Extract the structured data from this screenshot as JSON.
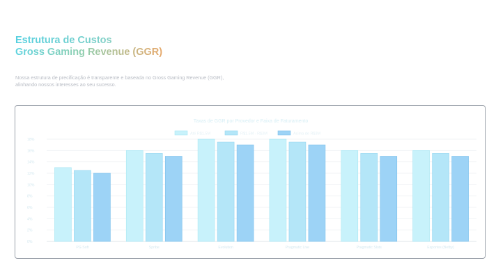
{
  "header": {
    "title_line1": "Estrutura de Custos",
    "title_line2": "Gross Gaming Revenue (GGR)",
    "description": "Nossa estrutura de precificação é transparente e baseada no Gross Gaming Revenue (GGR), alinhando nossos interesses ao seu sucesso."
  },
  "colors": {
    "series": [
      "#c8f2fb",
      "#b4e6f8",
      "#9dd3f6"
    ],
    "series_stroke": [
      "#a9e6f3",
      "#93d6f0",
      "#7cc0ec"
    ],
    "grid": "#f0f3f5",
    "axis": "#dfe6ea"
  },
  "chart_data": {
    "type": "bar",
    "title": "Taxas de GGR por Provedor e Faixa de Faturamento",
    "categories": [
      "PG Soft",
      "Spribe",
      "Evolution",
      "Pragmatic Live",
      "Pragmatic Slots",
      "Esportes (Betby)"
    ],
    "series": [
      {
        "name": "Até R$1.5M",
        "values": [
          13,
          16,
          18,
          18,
          16,
          16
        ]
      },
      {
        "name": "R$1.5M - R$3M",
        "values": [
          12.5,
          15.5,
          17.5,
          17.5,
          15.5,
          15.5
        ]
      },
      {
        "name": "Acima de R$3M",
        "values": [
          12,
          15,
          17,
          17,
          15,
          15
        ]
      }
    ],
    "ylim": [
      0,
      18
    ],
    "yticks": [
      "0%",
      "2%",
      "4%",
      "6%",
      "8%",
      "10%",
      "12%",
      "14%",
      "16%",
      "18%"
    ],
    "legend": "top",
    "grid": true
  }
}
